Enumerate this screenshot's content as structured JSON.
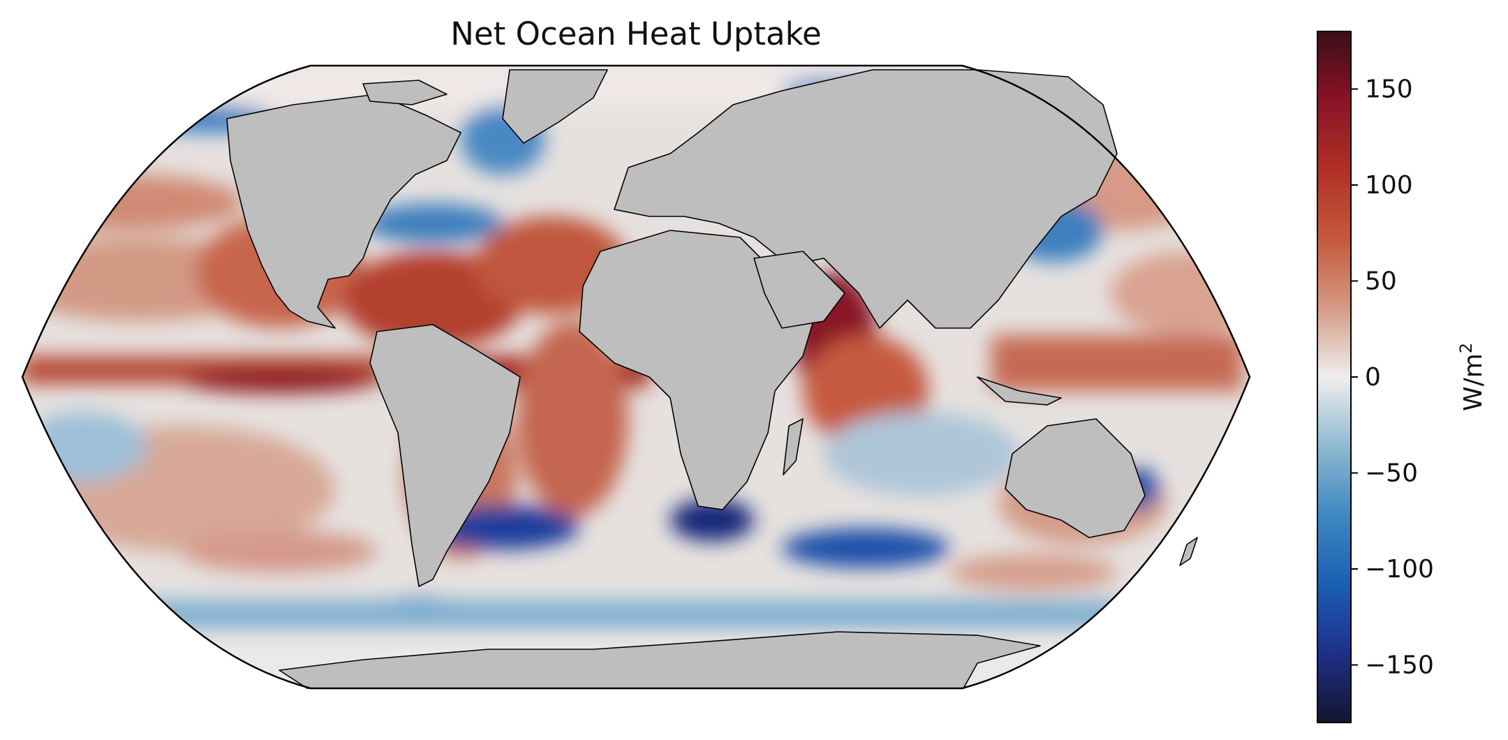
{
  "title": "Net Ocean Heat Uptake",
  "projection": "Robinson",
  "land_color": "#bebebe",
  "ocean_colormap": "balance (diverging blue-white-red)",
  "colorbar": {
    "label": "W/m",
    "label_superscript": "2",
    "min": -180,
    "max": 180,
    "ticks": [
      {
        "value": 150,
        "label": "150"
      },
      {
        "value": 100,
        "label": "100"
      },
      {
        "value": 50,
        "label": "50"
      },
      {
        "value": 0,
        "label": "0"
      },
      {
        "value": -50,
        "label": "−50"
      },
      {
        "value": -100,
        "label": "−100"
      },
      {
        "value": -150,
        "label": "−150"
      }
    ],
    "colors": [
      "#12162e",
      "#1f2f8a",
      "#1a5fb4",
      "#3e88c1",
      "#8fbad2",
      "#f0eeee",
      "#d59a85",
      "#c5593b",
      "#b03025",
      "#8a1326",
      "#3c0d18"
    ]
  }
}
